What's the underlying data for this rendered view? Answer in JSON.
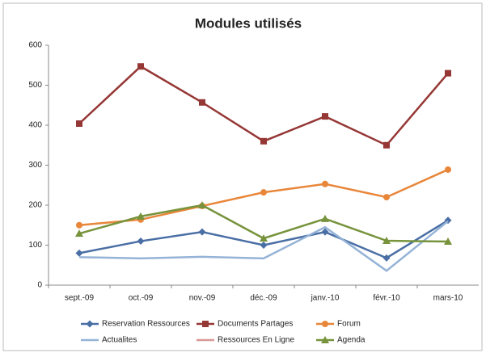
{
  "chart_data": {
    "type": "line",
    "title": "Modules utilisés",
    "categories": [
      "sept.-09",
      "oct.-09",
      "nov.-09",
      "déc.-09",
      "janv.-10",
      "févr.-10",
      "mars-10"
    ],
    "series": [
      {
        "name": "Reservation Ressources",
        "color": "#4a6fa5",
        "marker": "diamond",
        "values": [
          80,
          110,
          133,
          100,
          133,
          68,
          162
        ]
      },
      {
        "name": "Documents Partages",
        "color": "#953735",
        "marker": "square",
        "values": [
          404,
          547,
          457,
          360,
          422,
          350,
          530
        ]
      },
      {
        "name": "Forum",
        "color": "#e8863a",
        "marker": "circle",
        "values": [
          150,
          164,
          198,
          232,
          253,
          220,
          289
        ]
      },
      {
        "name": "Actualites",
        "color": "#95b3d7",
        "marker": "none",
        "values": [
          70,
          67,
          71,
          67,
          145,
          36,
          160
        ]
      },
      {
        "name": "Ressources En Ligne",
        "color": "#d99694",
        "marker": "none",
        "values": [
          null,
          null,
          null,
          null,
          null,
          null,
          null
        ]
      },
      {
        "name": "Agenda",
        "color": "#77933c",
        "marker": "triangle",
        "values": [
          129,
          172,
          200,
          117,
          166,
          111,
          109
        ]
      }
    ],
    "ylim": [
      0,
      600
    ],
    "yticks": [
      0,
      100,
      200,
      300,
      400,
      500,
      600
    ],
    "grid": false
  }
}
